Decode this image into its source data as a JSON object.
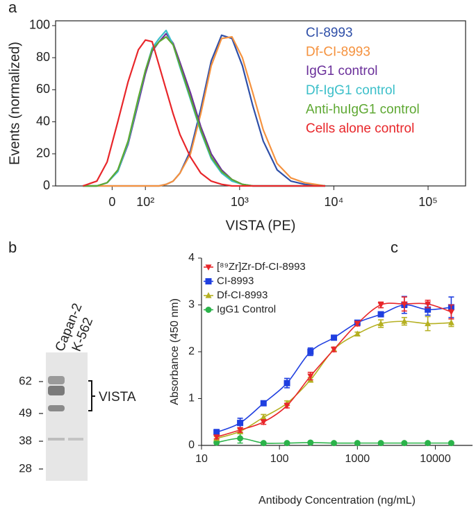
{
  "chart_data": [
    {
      "type": "line",
      "panel": "a",
      "xlabel": "VISTA (PE)",
      "ylabel": "Events (normalized)",
      "xscale": "biexponential",
      "xlim": [
        -170,
        250000
      ],
      "ylim": [
        0,
        103
      ],
      "xticks": [
        0,
        {
          "value": 100,
          "label": "10²"
        },
        {
          "value": 1000,
          "label": "10³"
        },
        {
          "value": 10000,
          "label": "10⁴"
        },
        {
          "value": 100000,
          "label": "10⁵"
        }
      ],
      "yticks": [
        0,
        20,
        40,
        60,
        80,
        100
      ],
      "legend": "upper right",
      "x": [
        -88,
        -46,
        -15,
        17,
        48,
        79,
        100,
        118,
        140,
        166,
        197,
        233,
        301,
        387,
        500,
        644,
        830,
        1070,
        1380,
        1780,
        2500,
        3500,
        4900,
        8100
      ],
      "series": [
        {
          "name": "CI-8993",
          "color": "#2f4fa8",
          "values": [
            0,
            0,
            0,
            0,
            0,
            0,
            0,
            0,
            0,
            1,
            3,
            8,
            22,
            48,
            78,
            94,
            92,
            75,
            50,
            28,
            10,
            3,
            1,
            0
          ]
        },
        {
          "name": "Df-CI-8993",
          "color": "#f5923e",
          "values": [
            0,
            0,
            0,
            0,
            0,
            0,
            0,
            0,
            0,
            1,
            3,
            8,
            20,
            45,
            75,
            92,
            93,
            80,
            58,
            35,
            14,
            5,
            2,
            0
          ]
        },
        {
          "name": "IgG1  control",
          "color": "#6a2f9a",
          "values": [
            0,
            0,
            2,
            9,
            26,
            52,
            70,
            84,
            90,
            95,
            89,
            77,
            58,
            37,
            20,
            10,
            4,
            1,
            0,
            0,
            0,
            0,
            0,
            0
          ]
        },
        {
          "name": "Df-IgG1  control",
          "color": "#3bbfc9",
          "values": [
            0,
            0,
            2,
            9,
            27,
            54,
            72,
            86,
            92,
            97,
            88,
            74,
            54,
            34,
            17,
            8,
            3,
            1,
            0,
            0,
            0,
            0,
            0,
            0
          ]
        },
        {
          "name": "Anti-huIgG1 control",
          "color": "#5ea832",
          "values": [
            0,
            0,
            2,
            10,
            28,
            55,
            72,
            85,
            90,
            93,
            88,
            75,
            55,
            35,
            18,
            9,
            4,
            1,
            0,
            0,
            0,
            0,
            0,
            0
          ]
        },
        {
          "name": "Cells alone control",
          "color": "#e8262a",
          "values": [
            0,
            3,
            15,
            40,
            65,
            85,
            91,
            90,
            75,
            60,
            45,
            32,
            18,
            8,
            3,
            1,
            0,
            0,
            0,
            0,
            0,
            0,
            0,
            0
          ]
        }
      ]
    },
    {
      "type": "scatter",
      "panel": "c",
      "xlabel": "Antibody Concentration (ng/mL)",
      "ylabel": "Absorbance (450 nm)",
      "xscale": "log",
      "xlim": [
        10,
        30000
      ],
      "ylim": [
        0,
        4
      ],
      "xticks": [
        10,
        100,
        1000,
        10000
      ],
      "yticks": [
        0,
        1,
        2,
        3,
        4
      ],
      "legend": "upper left",
      "x": [
        15.6,
        31.3,
        62.5,
        125,
        250,
        500,
        1000,
        2000,
        4000,
        8000,
        16000
      ],
      "series": [
        {
          "name": "[⁸⁹Zr]Zr-Df-CI-8993",
          "color": "#e8262a",
          "marker": "triangle-down",
          "values": [
            0.18,
            0.33,
            0.5,
            0.85,
            1.48,
            2.05,
            2.6,
            3.0,
            3.02,
            3.02,
            2.85
          ],
          "errors": [
            0.04,
            0.05,
            0.05,
            0.05,
            0.08,
            0.05,
            0.05,
            0.06,
            0.15,
            0.08,
            0.15
          ]
        },
        {
          "name": "CI-8993",
          "color": "#1f3fe0",
          "marker": "square",
          "values": [
            0.28,
            0.48,
            0.9,
            1.33,
            2.0,
            2.3,
            2.62,
            2.8,
            3.0,
            2.9,
            2.95
          ],
          "errors": [
            0.06,
            0.1,
            0.04,
            0.1,
            0.08,
            0.04,
            0.05,
            0.05,
            0.18,
            0.12,
            0.22
          ]
        },
        {
          "name": "Df-CI-8993",
          "color": "#b5b021",
          "marker": "triangle-up",
          "values": [
            0.15,
            0.3,
            0.6,
            0.9,
            1.4,
            2.05,
            2.38,
            2.6,
            2.65,
            2.6,
            2.62
          ],
          "errors": [
            0.04,
            0.05,
            0.06,
            0.05,
            0.05,
            0.04,
            0.04,
            0.08,
            0.08,
            0.15,
            0.08
          ]
        },
        {
          "name": "IgG1 Control",
          "color": "#2bb34a",
          "marker": "circle",
          "values": [
            0.06,
            0.15,
            0.05,
            0.05,
            0.06,
            0.05,
            0.05,
            0.05,
            0.05,
            0.05,
            0.05
          ],
          "errors": [
            0.02,
            0.1,
            0.02,
            0.02,
            0.02,
            0.02,
            0.02,
            0.02,
            0.02,
            0.02,
            0.02
          ]
        }
      ]
    }
  ],
  "blot": {
    "panel": "b",
    "lanes": [
      "Capan-2",
      "K-562"
    ],
    "markers": [
      62,
      49,
      38,
      28
    ],
    "band_label": "VISTA"
  }
}
